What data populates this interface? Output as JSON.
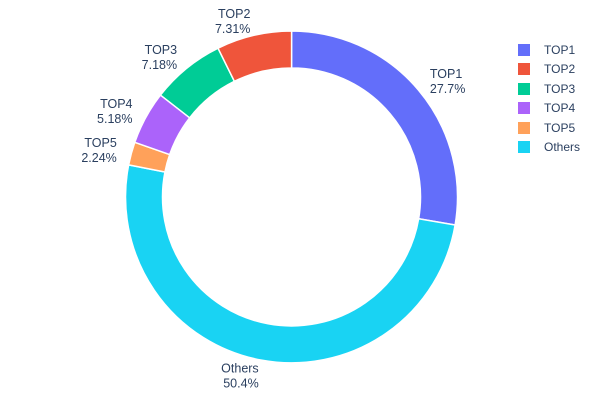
{
  "figure": {
    "background": "#ffffff",
    "text_color": "#2a3f5f"
  },
  "chart_data": {
    "type": "pie",
    "subtype": "donut",
    "title": "",
    "labels": [
      "TOP1",
      "TOP2",
      "TOP3",
      "TOP4",
      "TOP5",
      "Others"
    ],
    "values": [
      27.7,
      7.31,
      7.18,
      5.18,
      2.24,
      50.4
    ],
    "value_labels": [
      "27.7%",
      "7.31%",
      "7.18%",
      "5.18%",
      "2.24%",
      "50.4%"
    ],
    "colors": [
      "#636efa",
      "#ef553b",
      "#00cc96",
      "#ab63fa",
      "#ffa15a",
      "#19d3f3"
    ],
    "hole_ratio": 0.78,
    "start_angle_deg": 90,
    "direction": "clockwise",
    "draw_order": [
      0,
      5,
      4,
      3,
      2,
      1
    ],
    "labels_position": "outside",
    "legend": {
      "position": "right",
      "entries": [
        "TOP1",
        "TOP2",
        "TOP3",
        "TOP4",
        "TOP5",
        "Others"
      ]
    }
  }
}
